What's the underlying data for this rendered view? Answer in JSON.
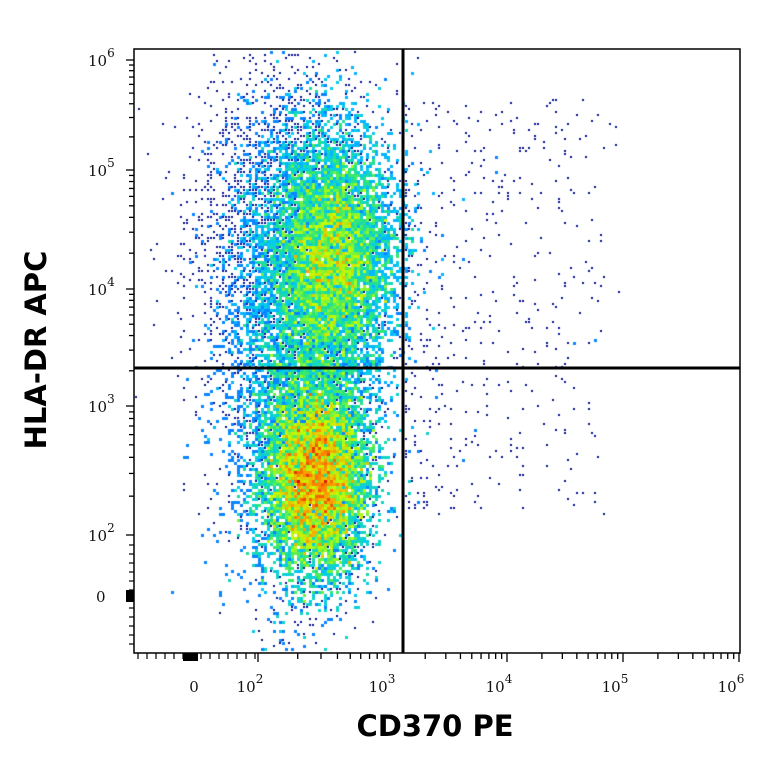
{
  "chart_data": {
    "type": "scatter",
    "subtype": "flow-cytometry-density-dot-plot",
    "title": "",
    "xlabel": "CD370 PE",
    "ylabel": "HLA-DR APC",
    "x_scale": "biexponential",
    "y_scale": "biexponential",
    "x_ticks": [
      {
        "label": "0",
        "value": 0
      },
      {
        "label": "10",
        "exp": "2",
        "value": 100
      },
      {
        "label": "10",
        "exp": "3",
        "value": 1000
      },
      {
        "label": "10",
        "exp": "4",
        "value": 10000
      },
      {
        "label": "10",
        "exp": "5",
        "value": 100000
      },
      {
        "label": "10",
        "exp": "6",
        "value": 1000000
      }
    ],
    "y_ticks": [
      {
        "label": "0",
        "value": 0
      },
      {
        "label": "10",
        "exp": "2",
        "value": 100
      },
      {
        "label": "10",
        "exp": "3",
        "value": 1000
      },
      {
        "label": "10",
        "exp": "4",
        "value": 10000
      },
      {
        "label": "10",
        "exp": "5",
        "value": 100000
      },
      {
        "label": "10",
        "exp": "6",
        "value": 1000000
      }
    ],
    "xlim": [
      -300,
      1000000
    ],
    "ylim": [
      -300,
      1000000
    ],
    "quadrant_gate": {
      "x_threshold": 1400,
      "y_threshold": 2000
    },
    "populations": [
      {
        "name": "HLA-DR low / CD370 negative",
        "center_x": 300,
        "center_y": 270,
        "intensity": "peak (red)"
      },
      {
        "name": "HLA-DR high / CD370 negative",
        "center_x": 450,
        "center_y": 15000,
        "intensity": "mid (yellow-green)"
      },
      {
        "name": "CD370 positive scattered events",
        "x_range": [
          1400,
          150000
        ],
        "y_range": [
          100,
          200000
        ],
        "intensity": "sparse (single dots)"
      }
    ],
    "color_scale": [
      "#0000cc",
      "#1a4dff",
      "#00e5ff",
      "#33ff66",
      "#ffff00",
      "#ff8000",
      "#e00000"
    ],
    "grid": false,
    "legend": null
  },
  "axes": {
    "x_title": "CD370 PE",
    "y_title": "HLA-DR APC"
  }
}
